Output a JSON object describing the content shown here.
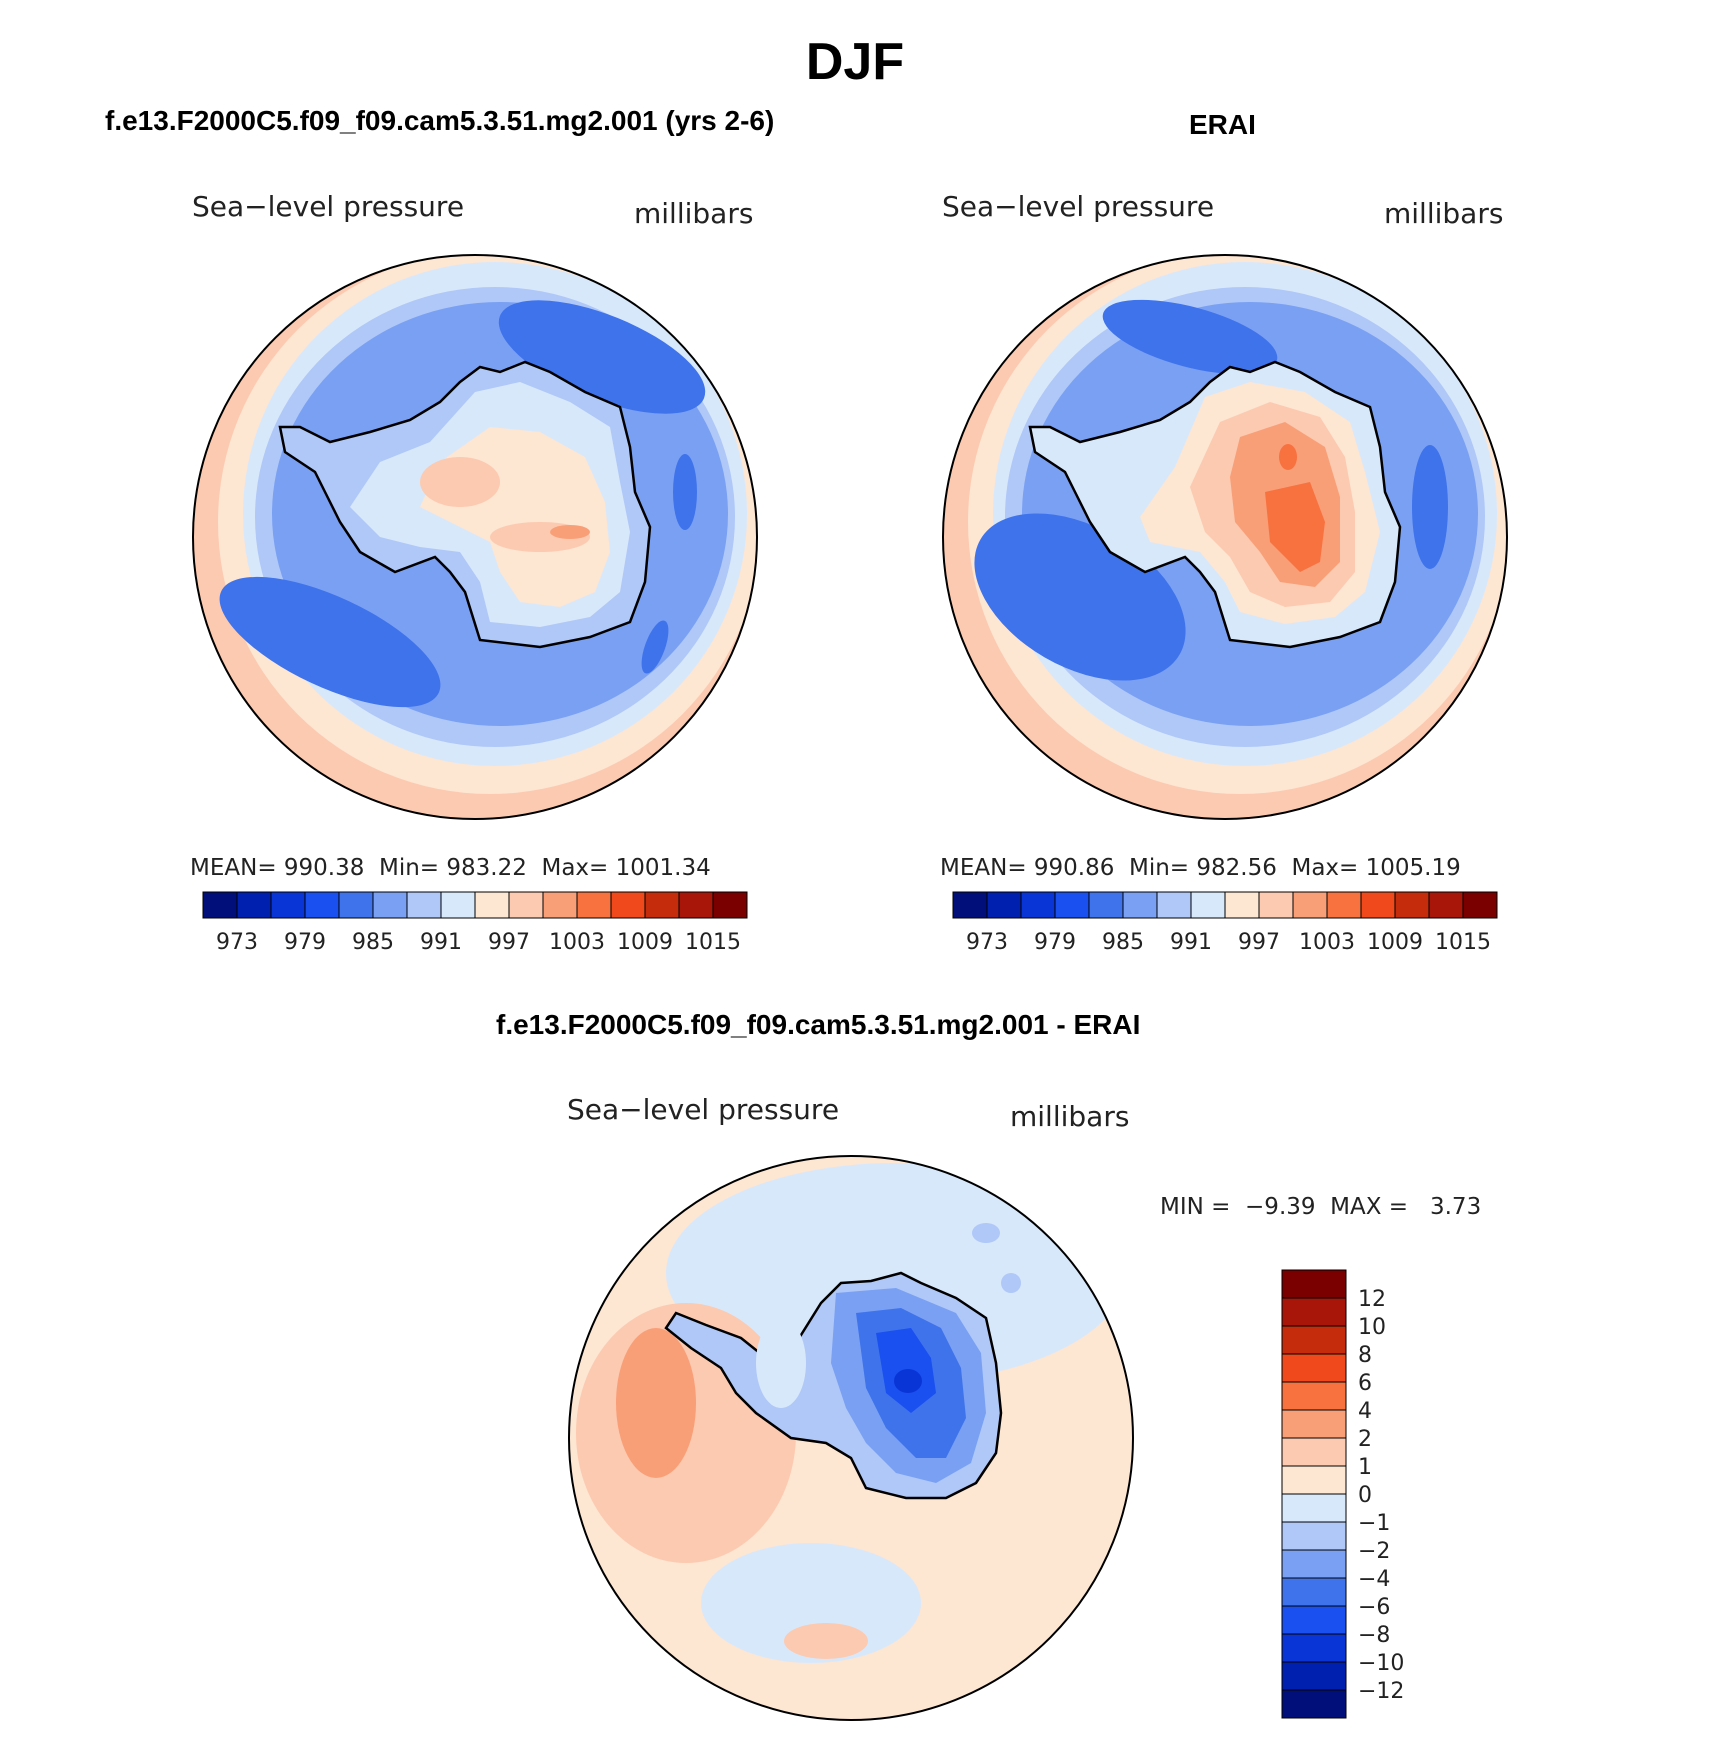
{
  "page": {
    "season": "DJF",
    "left_title": "f.e13.F2000C5.f09_f09.cam5.3.51.mg2.001 (yrs 2-6)",
    "right_title": "ERAI",
    "diff_title": "f.e13.F2000C5.f09_f09.cam5.3.51.mg2.001 - ERAI"
  },
  "panels": {
    "model": {
      "variable": "Sea−level pressure",
      "units": "millibars",
      "stats": "MEAN= 990.38  Min= 983.22  Max= 1001.34",
      "mean": 990.38,
      "min": 983.22,
      "max": 1001.34
    },
    "erai": {
      "variable": "Sea−level pressure",
      "units": "millibars",
      "stats": "MEAN= 990.86  Min= 982.56  Max= 1005.19",
      "mean": 990.86,
      "min": 982.56,
      "max": 1005.19
    },
    "diff": {
      "variable": "Sea−level pressure",
      "units": "millibars",
      "stats": "MIN =  −9.39  MAX =   3.73",
      "min": -9.39,
      "max": 3.73
    }
  },
  "colorbars": {
    "abs_colors": [
      "#000f7a",
      "#0021b0",
      "#0a35d6",
      "#1a4ff0",
      "#3f73ec",
      "#7aa0f3",
      "#afc8f7",
      "#d8e8fb",
      "#fde6d2",
      "#fccab0",
      "#f99f78",
      "#f87240",
      "#f04a1c",
      "#c52c0c",
      "#a8160a",
      "#7a0000"
    ],
    "abs_labels": [
      "973",
      "979",
      "985",
      "991",
      "997",
      "1003",
      "1009",
      "1015"
    ],
    "diff_colors": [
      "#000f7a",
      "#0021b0",
      "#0a35d6",
      "#1a4ff0",
      "#3f73ec",
      "#7aa0f3",
      "#afc8f7",
      "#d8e8fb",
      "#fde6d2",
      "#fccab0",
      "#f99f78",
      "#f87240",
      "#f04a1c",
      "#c52c0c",
      "#a8160a",
      "#7a0000"
    ],
    "diff_labels": [
      "12",
      "10",
      "8",
      "6",
      "4",
      "2",
      "1",
      "0",
      "−1",
      "−2",
      "−4",
      "−6",
      "−8",
      "−10",
      "−12"
    ]
  },
  "colors": {
    "ocean_low": "#6f97f0",
    "ocean_mid": "#9fbdf5",
    "ocean_deep": "#3f73ec",
    "rim": "#fde6d2",
    "rim2": "#fccab0",
    "land_text": "#000000"
  }
}
